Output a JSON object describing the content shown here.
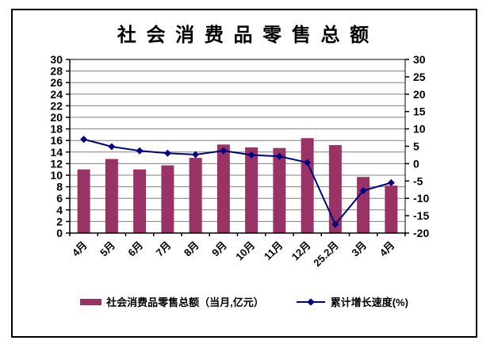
{
  "window": {
    "background_color": "#ffffff",
    "border_color": "#000000",
    "gridline_color": "#808080"
  },
  "chart_data": {
    "type": "combo",
    "title": "社 会 消 费 品 零 售 总 额",
    "categories": [
      "4月",
      "5月",
      "6月",
      "7月",
      "8月",
      "9月",
      "10月",
      "11月",
      "12月",
      "25.2月",
      "3月",
      "4月"
    ],
    "series": [
      {
        "name": "社会消费品零售总额（当月,亿元）",
        "type": "bar",
        "axis": "left",
        "color": "#993366",
        "values": [
          11.0,
          12.8,
          11.0,
          11.7,
          13.0,
          15.3,
          14.8,
          14.7,
          16.4,
          15.2,
          9.7,
          8.2
        ]
      },
      {
        "name": "累计增长速度(%)",
        "type": "line",
        "axis": "right",
        "color": "#000080",
        "marker": "diamond",
        "values": [
          7.0,
          4.9,
          3.7,
          3.0,
          2.6,
          3.7,
          2.5,
          2.1,
          0.3,
          -17.5,
          -7.8,
          -5.5
        ]
      }
    ],
    "left_axis": {
      "min": 0,
      "max": 30,
      "step": 2
    },
    "right_axis": {
      "min": -20,
      "max": 30,
      "step": 5
    },
    "grid": true,
    "legend_position": "bottom",
    "x_label_rotation": -45
  }
}
